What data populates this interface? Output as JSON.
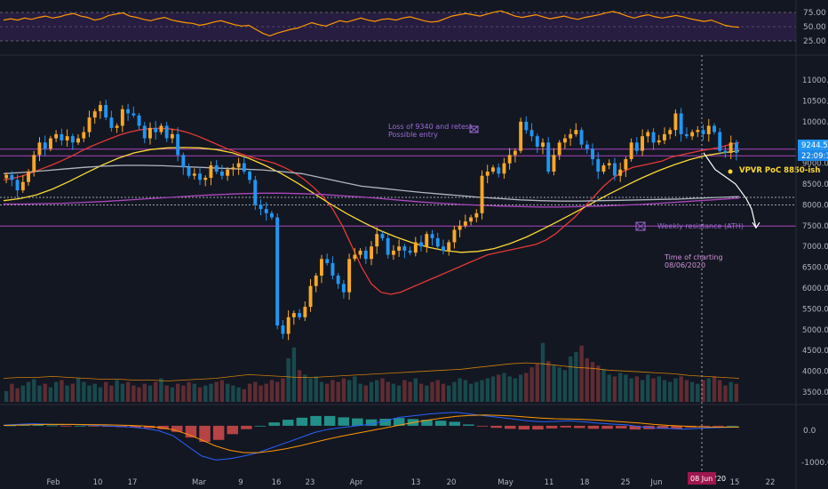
{
  "chart_data": [
    {
      "type": "line",
      "panel": "rsi",
      "ylim": [
        15,
        85
      ],
      "levels": [
        75,
        50,
        25
      ],
      "tick_labels": [
        "75.00",
        "50.00",
        "25.00"
      ],
      "band": [
        25,
        75
      ],
      "values": [
        60,
        62,
        60,
        63,
        61,
        64,
        66,
        63,
        65,
        68,
        70,
        66,
        64,
        60,
        62,
        67,
        69,
        71,
        66,
        64,
        61,
        59,
        62,
        64,
        60,
        58,
        56,
        55,
        52,
        54,
        57,
        59,
        56,
        53,
        51,
        52,
        46,
        40,
        36,
        40,
        43,
        46,
        48,
        52,
        56,
        53,
        51,
        55,
        59,
        57,
        60,
        63,
        60,
        58,
        61,
        62,
        60,
        63,
        65,
        62,
        59,
        57,
        58,
        62,
        66,
        68,
        70,
        68,
        66,
        69,
        72,
        74,
        70,
        66,
        64,
        66,
        68,
        65,
        62,
        64,
        66,
        63,
        61,
        64,
        66,
        68,
        71,
        73,
        70,
        66,
        63,
        66,
        68,
        65,
        63,
        65,
        67,
        65,
        62,
        60,
        58,
        60,
        56,
        52,
        50,
        49
      ]
    },
    {
      "type": "candlestick",
      "panel": "price",
      "ylim": [
        3200,
        11600
      ],
      "ticks": [
        11000,
        10500,
        10000,
        9500,
        9000,
        8500,
        8000,
        7500,
        7000,
        6500,
        6000,
        5500,
        5000,
        4500,
        4000,
        3500
      ],
      "tick_labels": [
        "11000.0",
        "10500.0",
        "10000.0",
        "9500.0",
        "9000.0",
        "8500.0",
        "8000.0",
        "7500.0",
        "7000.0",
        "6500.0",
        "6000.0",
        "5500.0",
        "5000.0",
        "4500.0",
        "4000.0",
        "3500.0"
      ],
      "closes": [
        8720,
        8600,
        8350,
        8550,
        8800,
        9200,
        9500,
        9350,
        9600,
        9700,
        9550,
        9650,
        9500,
        9600,
        9750,
        10100,
        10250,
        10400,
        10100,
        9850,
        9900,
        10300,
        10200,
        10150,
        9900,
        9600,
        9850,
        9750,
        9900,
        9600,
        9700,
        9200,
        8900,
        8700,
        8750,
        8600,
        8650,
        8950,
        8800,
        8700,
        8850,
        8900,
        9000,
        8800,
        8600,
        8000,
        7900,
        7800,
        7700,
        5100,
        4900,
        5300,
        5400,
        5300,
        5550,
        6050,
        6300,
        6700,
        6600,
        6300,
        6100,
        5900,
        6700,
        6800,
        6900,
        6700,
        7000,
        7300,
        7200,
        6800,
        6900,
        7000,
        6900,
        6850,
        7100,
        7000,
        7300,
        7200,
        7000,
        6900,
        7100,
        7400,
        7500,
        7600,
        7700,
        7800,
        8700,
        8800,
        8900,
        8750,
        9000,
        9200,
        9300,
        10000,
        9800,
        9650,
        9400,
        9500,
        8800,
        9200,
        9500,
        9600,
        9700,
        9800,
        9450,
        9350,
        9100,
        8800,
        8950,
        9000,
        8700,
        8850,
        9100,
        9500,
        9300,
        9650,
        9750,
        9500,
        9550,
        9700,
        9800,
        10200,
        9700,
        9650,
        9750,
        9800,
        9700,
        9900,
        9750,
        9300,
        9250,
        9500,
        9250
      ],
      "series": [
        {
          "name": "",
          "color": "#e53935",
          "values": [
            8600,
            8640,
            8700,
            8780,
            8870,
            8960,
            9060,
            9170,
            9290,
            9400,
            9500,
            9590,
            9680,
            9750,
            9800,
            9830,
            9840,
            9830,
            9800,
            9740,
            9660,
            9560,
            9460,
            9360,
            9270,
            9190,
            9120,
            9060,
            9000,
            8900,
            8780,
            8620,
            8430,
            8200,
            7900,
            7500,
            7000,
            6500,
            6100,
            5900,
            5850,
            5900,
            6000,
            6100,
            6200,
            6300,
            6400,
            6500,
            6600,
            6700,
            6800,
            6850,
            6900,
            6950,
            7000,
            7050,
            7150,
            7300,
            7500,
            7700,
            7950,
            8200,
            8450,
            8650,
            8800,
            8900,
            8950,
            9000,
            9050,
            9150,
            9200,
            9250,
            9300,
            9340,
            9380,
            9450,
            9500
          ]
        },
        {
          "name": "",
          "color": "#fdd835",
          "values": [
            8100,
            8150,
            8240,
            8380,
            8560,
            8760,
            8950,
            9120,
            9250,
            9330,
            9370,
            9380,
            9370,
            9330,
            9250,
            9120,
            8950,
            8750,
            8520,
            8270,
            8020,
            7790,
            7580,
            7390,
            7230,
            7090,
            6980,
            6900,
            6860,
            6880,
            6950,
            7070,
            7230,
            7420,
            7620,
            7830,
            8040,
            8250,
            8450,
            8640,
            8810,
            8960,
            9090,
            9190,
            9250,
            9300
          ]
        },
        {
          "name": "",
          "color": "#b2b5be",
          "values": [
            8750,
            8780,
            8820,
            8860,
            8900,
            8930,
            8950,
            8950,
            8940,
            8920,
            8900,
            8880,
            8860,
            8840,
            8800,
            8750,
            8650,
            8550,
            8450,
            8400,
            8350,
            8300,
            8260,
            8220,
            8180,
            8150,
            8120,
            8100,
            8090,
            8090,
            8100,
            8110,
            8120,
            8130,
            8140,
            8160,
            8180,
            8200
          ]
        },
        {
          "name": "",
          "color": "#ab47bc",
          "values": [
            8020,
            8020,
            8030,
            8040,
            8060,
            8080,
            8110,
            8140,
            8170,
            8200,
            8230,
            8250,
            8270,
            8280,
            8280,
            8270,
            8250,
            8220,
            8190,
            8150,
            8110,
            8070,
            8040,
            8010,
            7990,
            7970,
            7960,
            7950,
            7950,
            7960,
            7970,
            7990,
            8010,
            8040,
            8070,
            8100,
            8130,
            8160
          ]
        }
      ],
      "levels": [
        {
          "price": 9340,
          "color": "#ab47bc"
        },
        {
          "price": 9180,
          "color": "#ab47bc"
        },
        {
          "price": 7490,
          "color": "#ab47bc"
        },
        {
          "price": 8180,
          "color": "#d1d4dc",
          "dotted": true
        },
        {
          "price": 8000,
          "color": "#d1d4dc",
          "dotted": true
        }
      ],
      "current_price": 9244.5,
      "current_price_label": "9244.5",
      "countdown_label": "22:09:15",
      "annotations": [
        {
          "text": "Loss of 9340 and retest",
          "color": "#9c6bd6"
        },
        {
          "text": "Possible entry",
          "color": "#9c6bd6"
        },
        {
          "text": "VPVR PoC 8850-ish",
          "color": "#fdd835"
        },
        {
          "text": "Weekly resistance (ATH)",
          "color": "#9c6bd6"
        },
        {
          "text": "Time of charting",
          "color": "#ce93d8"
        },
        {
          "text": "08/06/2020",
          "color": "#ce93d8"
        }
      ],
      "projection": [
        9250,
        8850,
        8700,
        8500,
        8150,
        7900,
        7450
      ]
    },
    {
      "type": "bar",
      "panel": "volume",
      "ylim": [
        0,
        100
      ],
      "values": [
        12,
        20,
        15,
        18,
        22,
        25,
        18,
        20,
        16,
        22,
        24,
        18,
        20,
        26,
        22,
        18,
        20,
        16,
        22,
        18,
        24,
        20,
        22,
        18,
        16,
        20,
        18,
        22,
        26,
        18,
        16,
        20,
        18,
        22,
        20,
        16,
        18,
        20,
        22,
        24,
        20,
        18,
        16,
        14,
        20,
        22,
        18,
        20,
        24,
        22,
        26,
        48,
        60,
        35,
        30,
        26,
        28,
        22,
        20,
        24,
        22,
        26,
        24,
        28,
        20,
        18,
        22,
        24,
        26,
        22,
        20,
        18,
        24,
        22,
        26,
        20,
        18,
        22,
        24,
        20,
        18,
        22,
        26,
        24,
        20,
        22,
        24,
        26,
        28,
        30,
        32,
        28,
        26,
        30,
        32,
        38,
        42,
        65,
        45,
        40,
        38,
        35,
        50,
        55,
        62,
        48,
        44,
        40,
        36,
        30,
        28,
        32,
        30,
        26,
        28,
        24,
        30,
        26,
        28,
        24,
        22,
        26,
        28,
        24,
        22,
        20,
        24,
        26,
        28,
        24,
        18,
        22,
        20
      ],
      "ma": [
        26,
        27,
        27,
        28,
        27,
        26,
        25,
        25,
        24,
        24,
        23,
        24,
        25,
        26,
        28,
        30,
        29,
        28,
        27,
        27,
        28,
        29,
        30,
        31,
        32,
        33,
        34,
        35,
        36,
        38,
        40,
        42,
        43,
        42,
        40,
        38,
        37,
        35,
        34,
        33,
        32,
        31,
        29,
        28,
        27,
        26
      ]
    },
    {
      "type": "line",
      "panel": "macd",
      "ylim": [
        -1300,
        500
      ],
      "ticks": [
        0,
        -1000
      ],
      "tick_labels": [
        "0.0",
        "-1000.0"
      ],
      "series": [
        {
          "name": "",
          "color": "#2962ff",
          "values": [
            20,
            40,
            60,
            50,
            30,
            40,
            20,
            0,
            -20,
            -40,
            -80,
            -150,
            -300,
            -600,
            -900,
            -1020,
            -980,
            -900,
            -800,
            -650,
            -500,
            -350,
            -200,
            -100,
            -50,
            0,
            50,
            150,
            250,
            300,
            350,
            380,
            400,
            350,
            300,
            250,
            200,
            150,
            120,
            130,
            150,
            120,
            80,
            50,
            30,
            -30,
            -60,
            -80,
            -100,
            -80,
            -60,
            -50,
            -40
          ]
        },
        {
          "name": "",
          "color": "#ff9800",
          "values": [
            10,
            20,
            30,
            40,
            45,
            40,
            35,
            30,
            20,
            10,
            -10,
            -50,
            -120,
            -250,
            -420,
            -600,
            -730,
            -800,
            -800,
            -750,
            -680,
            -590,
            -490,
            -390,
            -300,
            -220,
            -140,
            -60,
            20,
            100,
            170,
            230,
            280,
            310,
            320,
            310,
            290,
            260,
            230,
            210,
            200,
            190,
            170,
            140,
            110,
            80,
            40,
            10,
            -10,
            -30,
            -40,
            -40,
            -40
          ]
        }
      ],
      "histogram": [
        10,
        20,
        30,
        10,
        -15,
        0,
        -15,
        -30,
        -40,
        -50,
        -70,
        -100,
        -180,
        -350,
        -480,
        -420,
        -250,
        -100,
        0,
        100,
        180,
        240,
        290,
        290,
        250,
        220,
        190,
        210,
        230,
        200,
        180,
        150,
        120,
        40,
        -20,
        -60,
        -90,
        -110,
        -110,
        -80,
        -50,
        -70,
        -90,
        -90,
        -80,
        -110,
        -100,
        -90,
        -90,
        -50,
        -20,
        -10,
        0
      ]
    }
  ],
  "x_axis": {
    "labels": [
      "Feb",
      "10",
      "17",
      "Mar",
      "9",
      "16",
      "23",
      "Apr",
      "13",
      "20",
      "May",
      "11",
      "18",
      "25",
      "Jun",
      "15",
      "22"
    ],
    "cursor_label": "08 Jun '20"
  }
}
